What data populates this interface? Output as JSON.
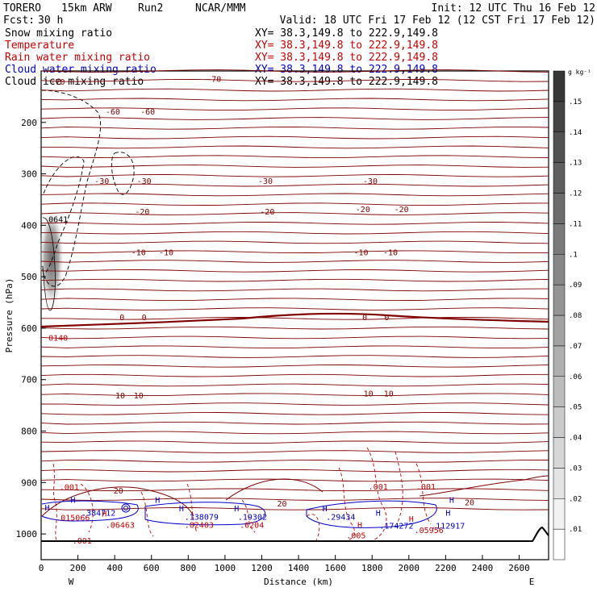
{
  "header": {
    "model": "TORERO",
    "resolution": "15km ARW",
    "run": "Run2",
    "center": "NCAR/MMM",
    "init": "Init: 12 UTC Thu 16 Feb 12",
    "fcst_label": "Fcst:",
    "fcst_value": "30 h",
    "valid": "Valid: 18 UTC Fri 17 Feb 12 (12 CST Fri 17 Feb 12)"
  },
  "fields": [
    {
      "name": "Snow mixing ratio",
      "xy": "XY=  38.3,149.8 to 222.9,149.8",
      "color": "#000000"
    },
    {
      "name": "Temperature",
      "xy": "XY=  38.3,149.8 to 222.9,149.8",
      "color": "#cc0000"
    },
    {
      "name": "Rain water mixing ratio",
      "xy": "XY=  38.3,149.8 to 222.9,149.8",
      "color": "#cc0000"
    },
    {
      "name": "Cloud water mixing ratio",
      "xy": "XY=  38.3,149.8 to 222.9,149.8",
      "color": "#0000cc"
    },
    {
      "name": "Cloud ice mixing ratio",
      "xy": "XY=  38.3,149.8 to 222.9,149.8",
      "color": "#000000"
    }
  ],
  "chart_data": {
    "type": "cross-section",
    "xlabel": "Distance (km)",
    "ylabel": "Pressure (hPa)",
    "xlim": [
      0,
      2760
    ],
    "ylim": [
      1050,
      100
    ],
    "x_ticks": [
      0,
      200,
      400,
      600,
      800,
      1000,
      1200,
      1400,
      1600,
      1800,
      2000,
      2200,
      2400,
      2600
    ],
    "y_ticks": [
      200,
      300,
      400,
      500,
      600,
      700,
      800,
      900,
      1000
    ],
    "left_end_label": "W",
    "right_end_label": "E",
    "colorbar": {
      "unit": "g kg⁻¹",
      "levels": [
        ".01",
        ".02",
        ".03",
        ".04",
        ".05",
        ".06",
        ".07",
        ".08",
        ".09",
        ".1",
        ".11",
        ".12",
        ".13",
        ".14",
        ".15"
      ]
    },
    "temperature_isotherms": [
      {
        "value": -70,
        "pressure": 125
      },
      {
        "value": -60,
        "pressure": 180
      },
      {
        "value": -30,
        "pressure": 313
      },
      {
        "value": -20,
        "pressure": 373
      },
      {
        "value": -10,
        "pressure": 452
      },
      {
        "value": 0,
        "pressure": 575
      },
      {
        "value": 10,
        "pressure": 726
      },
      {
        "value": 20,
        "pressure": 915
      }
    ],
    "isotherm_labels": [
      {
        "text": "-70",
        "x": 90,
        "p": 120
      },
      {
        "text": "-70",
        "x": 940,
        "p": 115
      },
      {
        "text": "-60",
        "x": 390,
        "p": 178
      },
      {
        "text": "-60",
        "x": 580,
        "p": 178
      },
      {
        "text": "-30",
        "x": 330,
        "p": 313
      },
      {
        "text": "-30",
        "x": 560,
        "p": 313
      },
      {
        "text": "-30",
        "x": 1220,
        "p": 313
      },
      {
        "text": "-30",
        "x": 1790,
        "p": 313
      },
      {
        "text": "-20",
        "x": 550,
        "p": 373
      },
      {
        "text": "-20",
        "x": 1230,
        "p": 373
      },
      {
        "text": "-20",
        "x": 1750,
        "p": 368
      },
      {
        "text": "-20",
        "x": 1960,
        "p": 368
      },
      {
        "text": "-10",
        "x": 530,
        "p": 452
      },
      {
        "text": "-10",
        "x": 680,
        "p": 452
      },
      {
        "text": "-10",
        "x": 1740,
        "p": 452
      },
      {
        "text": "-10",
        "x": 1900,
        "p": 452
      },
      {
        "text": "0",
        "x": 440,
        "p": 578
      },
      {
        "text": "0",
        "x": 560,
        "p": 578
      },
      {
        "text": "0",
        "x": 1760,
        "p": 578
      },
      {
        "text": "0",
        "x": 1880,
        "p": 578
      },
      {
        "text": "10",
        "x": 430,
        "p": 730
      },
      {
        "text": "10",
        "x": 530,
        "p": 730
      },
      {
        "text": "10",
        "x": 1780,
        "p": 726
      },
      {
        "text": "10",
        "x": 1890,
        "p": 726
      },
      {
        "text": "20",
        "x": 420,
        "p": 915
      },
      {
        "text": "20",
        "x": 1310,
        "p": 940
      },
      {
        "text": "20",
        "x": 2330,
        "p": 938
      }
    ],
    "field_labels": [
      {
        "text": "0641",
        "x": 40,
        "p": 388,
        "color": "#000000"
      },
      {
        "text": "0140",
        "x": 40,
        "p": 618,
        "color": "#cc0000"
      },
      {
        "text": ".001",
        "x": 100,
        "p": 908,
        "color": "#cc0000"
      },
      {
        "text": ".001",
        "x": 1780,
        "p": 907,
        "color": "#cc0000"
      },
      {
        "text": ".001",
        "x": 2040,
        "p": 907,
        "color": "#cc0000"
      },
      {
        "text": ".001",
        "x": 170,
        "p": 1012,
        "color": "#cc0000"
      },
      {
        "text": ".005",
        "x": 1660,
        "p": 1002,
        "color": "#cc0000"
      },
      {
        "text": ".015066",
        "x": 80,
        "p": 968,
        "color": "#cc0000"
      },
      {
        "text": ".06463",
        "x": 350,
        "p": 982,
        "color": "#cc0000"
      },
      {
        "text": ".02403",
        "x": 780,
        "p": 982,
        "color": "#cc0000"
      },
      {
        "text": ".0204",
        "x": 1080,
        "p": 982,
        "color": "#cc0000"
      },
      {
        "text": ".05956",
        "x": 2030,
        "p": 992,
        "color": "#cc0000"
      },
      {
        "text": ".384712",
        "x": 220,
        "p": 958,
        "color": "#0000cc"
      },
      {
        "text": ".138079",
        "x": 780,
        "p": 966,
        "color": "#0000cc"
      },
      {
        "text": ".19302",
        "x": 1070,
        "p": 966,
        "color": "#0000cc"
      },
      {
        "text": ".29434",
        "x": 1550,
        "p": 966,
        "color": "#0000cc"
      },
      {
        "text": ".174272",
        "x": 1840,
        "p": 983,
        "color": "#0000cc"
      },
      {
        "text": ".112917",
        "x": 2120,
        "p": 983,
        "color": "#0000cc"
      }
    ],
    "h_markers": [
      {
        "text": "H",
        "x": 20,
        "p": 948,
        "color": "#0000cc"
      },
      {
        "text": "H",
        "x": 160,
        "p": 933,
        "color": "#0000cc"
      },
      {
        "text": "H",
        "x": 330,
        "p": 960,
        "color": "#cc0000"
      },
      {
        "text": "H",
        "x": 620,
        "p": 933,
        "color": "#0000cc"
      },
      {
        "text": "H",
        "x": 750,
        "p": 950,
        "color": "#0000cc"
      },
      {
        "text": "H",
        "x": 1050,
        "p": 950,
        "color": "#0000cc"
      },
      {
        "text": "H",
        "x": 1530,
        "p": 950,
        "color": "#0000cc"
      },
      {
        "text": "H",
        "x": 1820,
        "p": 958,
        "color": "#0000cc"
      },
      {
        "text": "H",
        "x": 2000,
        "p": 970,
        "color": "#cc0000"
      },
      {
        "text": "H",
        "x": 2200,
        "p": 958,
        "color": "#0000cc"
      },
      {
        "text": "H",
        "x": 1720,
        "p": 982,
        "color": "#cc0000"
      },
      {
        "text": "H",
        "x": 2220,
        "p": 933,
        "color": "#0000cc"
      }
    ]
  }
}
